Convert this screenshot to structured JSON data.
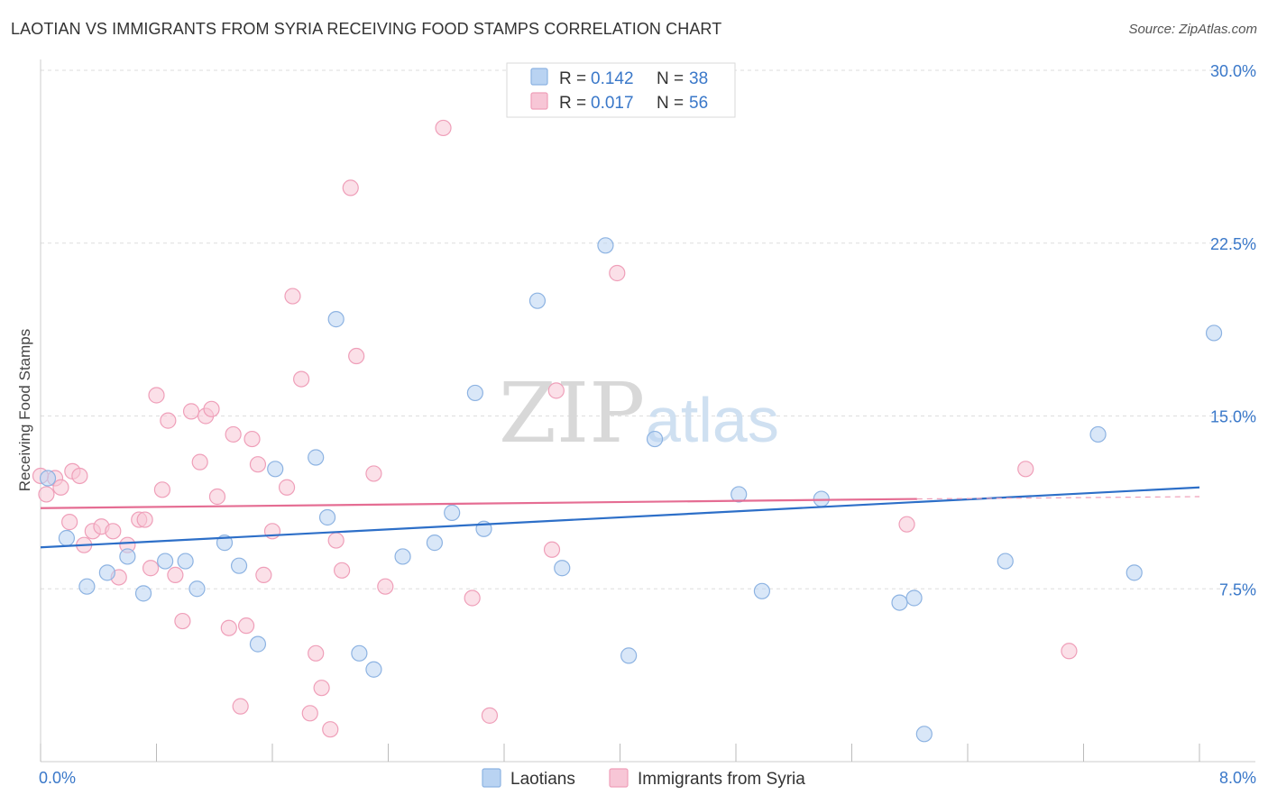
{
  "title": "LAOTIAN VS IMMIGRANTS FROM SYRIA RECEIVING FOOD STAMPS CORRELATION CHART",
  "source": "Source: ZipAtlas.com",
  "watermark": {
    "zip": "ZIP",
    "atlas": "atlas"
  },
  "colors": {
    "blue_fill": "#b9d3f2",
    "blue_stroke": "#8db3e2",
    "blue_line": "#2d6fc8",
    "pink_fill": "#f7c6d6",
    "pink_stroke": "#ef9fb9",
    "pink_line": "#e56d93",
    "value_text": "#3a78c9",
    "grid": "#dddddd"
  },
  "legend_top": {
    "rows": [
      {
        "r_label": "R =",
        "r_value": "0.142",
        "n_label": "N =",
        "n_value": "38"
      },
      {
        "r_label": "R =",
        "r_value": "0.017",
        "n_label": "N =",
        "n_value": "56"
      }
    ]
  },
  "chart_data": {
    "type": "scatter",
    "title": "LAOTIAN VS IMMIGRANTS FROM SYRIA RECEIVING FOOD STAMPS CORRELATION CHART",
    "ylabel": "Receiving Food Stamps",
    "xlim": [
      0,
      8.0
    ],
    "ylim": [
      0,
      30.0
    ],
    "x_tick_labels": [
      "0.0%",
      "8.0%"
    ],
    "y_ticks": [
      7.5,
      15.0,
      22.5,
      30.0
    ],
    "y_tick_labels": [
      "7.5%",
      "15.0%",
      "22.5%",
      "30.0%"
    ],
    "grid": true,
    "legend_position": "bottom-center",
    "series": [
      {
        "name": "Laotians",
        "r": 0.142,
        "n": 38,
        "trend": {
          "x": [
            0,
            8.0
          ],
          "y": [
            9.3,
            11.9
          ]
        },
        "points": [
          [
            0.05,
            12.3
          ],
          [
            0.18,
            9.7
          ],
          [
            0.32,
            7.6
          ],
          [
            0.46,
            8.2
          ],
          [
            0.6,
            8.9
          ],
          [
            0.71,
            7.3
          ],
          [
            0.86,
            8.7
          ],
          [
            1.0,
            8.7
          ],
          [
            1.08,
            7.5
          ],
          [
            1.27,
            9.5
          ],
          [
            1.37,
            8.5
          ],
          [
            1.5,
            5.1
          ],
          [
            1.62,
            12.7
          ],
          [
            1.9,
            13.2
          ],
          [
            1.98,
            10.6
          ],
          [
            2.04,
            19.2
          ],
          [
            2.2,
            4.7
          ],
          [
            2.3,
            4.0
          ],
          [
            2.5,
            8.9
          ],
          [
            2.72,
            9.5
          ],
          [
            2.84,
            10.8
          ],
          [
            3.0,
            16.0
          ],
          [
            3.06,
            10.1
          ],
          [
            3.43,
            20.0
          ],
          [
            3.6,
            8.4
          ],
          [
            3.9,
            22.4
          ],
          [
            4.06,
            4.6
          ],
          [
            4.24,
            14.0
          ],
          [
            4.82,
            11.6
          ],
          [
            4.98,
            7.4
          ],
          [
            5.39,
            11.4
          ],
          [
            5.93,
            6.9
          ],
          [
            6.03,
            7.1
          ],
          [
            6.1,
            1.2
          ],
          [
            6.66,
            8.7
          ],
          [
            7.3,
            14.2
          ],
          [
            7.55,
            8.2
          ],
          [
            8.1,
            18.6
          ]
        ]
      },
      {
        "name": "Immigrants from Syria",
        "r": 0.017,
        "n": 56,
        "trend": {
          "x": [
            0,
            6.05
          ],
          "y": [
            11.0,
            11.4
          ]
        },
        "dashed_extension": {
          "x": [
            6.05,
            8.0
          ],
          "y": [
            11.4,
            11.5
          ]
        },
        "points": [
          [
            0.04,
            11.6
          ],
          [
            0.1,
            12.3
          ],
          [
            0.22,
            12.6
          ],
          [
            0.27,
            12.4
          ],
          [
            0.2,
            10.4
          ],
          [
            0.3,
            9.4
          ],
          [
            0.36,
            10.0
          ],
          [
            0.42,
            10.2
          ],
          [
            0.5,
            10.0
          ],
          [
            0.54,
            8.0
          ],
          [
            0.6,
            9.4
          ],
          [
            0.68,
            10.5
          ],
          [
            0.72,
            10.5
          ],
          [
            0.76,
            8.4
          ],
          [
            0.8,
            15.9
          ],
          [
            0.84,
            11.8
          ],
          [
            0.88,
            14.8
          ],
          [
            0.93,
            8.1
          ],
          [
            0.98,
            6.1
          ],
          [
            1.04,
            15.2
          ],
          [
            1.1,
            13.0
          ],
          [
            1.14,
            15.0
          ],
          [
            1.18,
            15.3
          ],
          [
            1.22,
            11.5
          ],
          [
            1.3,
            5.8
          ],
          [
            1.33,
            14.2
          ],
          [
            1.38,
            2.4
          ],
          [
            1.42,
            5.9
          ],
          [
            1.46,
            14.0
          ],
          [
            1.5,
            12.9
          ],
          [
            1.54,
            8.1
          ],
          [
            1.6,
            10.0
          ],
          [
            1.7,
            11.9
          ],
          [
            1.74,
            20.2
          ],
          [
            1.8,
            16.6
          ],
          [
            1.86,
            2.1
          ],
          [
            1.9,
            4.7
          ],
          [
            1.94,
            3.2
          ],
          [
            2.0,
            1.4
          ],
          [
            2.04,
            9.6
          ],
          [
            2.08,
            8.3
          ],
          [
            2.14,
            24.9
          ],
          [
            2.18,
            17.6
          ],
          [
            2.3,
            12.5
          ],
          [
            2.38,
            7.6
          ],
          [
            2.78,
            27.5
          ],
          [
            2.98,
            7.1
          ],
          [
            3.1,
            2.0
          ],
          [
            3.53,
            9.2
          ],
          [
            3.56,
            16.1
          ],
          [
            3.98,
            21.2
          ],
          [
            5.98,
            10.3
          ],
          [
            6.8,
            12.7
          ],
          [
            7.1,
            4.8
          ],
          [
            0.0,
            12.4
          ],
          [
            0.14,
            11.9
          ]
        ]
      }
    ]
  }
}
